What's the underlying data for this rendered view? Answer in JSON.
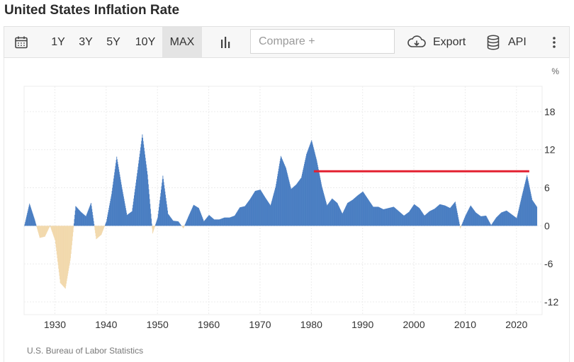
{
  "page": {
    "title": "United States Inflation Rate"
  },
  "toolbar": {
    "ranges": [
      "1Y",
      "3Y",
      "5Y",
      "10Y",
      "MAX"
    ],
    "selected_range": "MAX",
    "compare_placeholder": "Compare +",
    "export_label": "Export",
    "api_label": "API"
  },
  "colors": {
    "positive": "#4a7ec2",
    "negative": "#f2d9ad",
    "highlight_line": "#e32030",
    "grid": "#ececec"
  },
  "source": "U.S. Bureau of Labor Statistics",
  "chart_data": {
    "type": "bar",
    "ylabel": "%",
    "ylim": [
      -14,
      22
    ],
    "yticks": [
      18,
      12,
      6,
      0,
      -6,
      -12
    ],
    "xlim": [
      1924,
      2025
    ],
    "xticks": [
      1930,
      1940,
      1950,
      1960,
      1970,
      1980,
      1990,
      2000,
      2010,
      2020
    ],
    "grid": true,
    "series": [
      {
        "values_by_year": [
          [
            1924,
            0.0
          ],
          [
            1925,
            3.5
          ],
          [
            1926,
            1.0
          ],
          [
            1927,
            -1.9
          ],
          [
            1928,
            -1.7
          ],
          [
            1929,
            0.0
          ],
          [
            1930,
            -2.3
          ],
          [
            1931,
            -9.0
          ],
          [
            1932,
            -9.9
          ],
          [
            1933,
            -5.1
          ],
          [
            1934,
            3.1
          ],
          [
            1935,
            2.2
          ],
          [
            1936,
            1.5
          ],
          [
            1937,
            3.6
          ],
          [
            1938,
            -2.1
          ],
          [
            1939,
            -1.4
          ],
          [
            1940,
            0.7
          ],
          [
            1941,
            5.0
          ],
          [
            1942,
            10.9
          ],
          [
            1943,
            6.1
          ],
          [
            1944,
            1.7
          ],
          [
            1945,
            2.3
          ],
          [
            1946,
            8.3
          ],
          [
            1947,
            14.4
          ],
          [
            1948,
            8.1
          ],
          [
            1949,
            -1.2
          ],
          [
            1950,
            1.3
          ],
          [
            1951,
            7.9
          ],
          [
            1952,
            1.9
          ],
          [
            1953,
            0.8
          ],
          [
            1954,
            0.7
          ],
          [
            1955,
            -0.4
          ],
          [
            1956,
            1.5
          ],
          [
            1957,
            3.3
          ],
          [
            1958,
            2.8
          ],
          [
            1959,
            0.7
          ],
          [
            1960,
            1.7
          ],
          [
            1961,
            1.0
          ],
          [
            1962,
            1.0
          ],
          [
            1963,
            1.3
          ],
          [
            1964,
            1.3
          ],
          [
            1965,
            1.6
          ],
          [
            1966,
            2.9
          ],
          [
            1967,
            3.1
          ],
          [
            1968,
            4.2
          ],
          [
            1969,
            5.5
          ],
          [
            1970,
            5.7
          ],
          [
            1971,
            4.4
          ],
          [
            1972,
            3.2
          ],
          [
            1973,
            6.2
          ],
          [
            1974,
            11.0
          ],
          [
            1975,
            9.1
          ],
          [
            1976,
            5.8
          ],
          [
            1977,
            6.5
          ],
          [
            1978,
            7.6
          ],
          [
            1979,
            11.3
          ],
          [
            1980,
            13.5
          ],
          [
            1981,
            10.3
          ],
          [
            1982,
            6.2
          ],
          [
            1983,
            3.2
          ],
          [
            1984,
            4.3
          ],
          [
            1985,
            3.6
          ],
          [
            1986,
            1.9
          ],
          [
            1987,
            3.6
          ],
          [
            1988,
            4.1
          ],
          [
            1989,
            4.8
          ],
          [
            1990,
            5.4
          ],
          [
            1991,
            4.2
          ],
          [
            1992,
            3.0
          ],
          [
            1993,
            3.0
          ],
          [
            1994,
            2.6
          ],
          [
            1995,
            2.8
          ],
          [
            1996,
            3.0
          ],
          [
            1997,
            2.3
          ],
          [
            1998,
            1.6
          ],
          [
            1999,
            2.2
          ],
          [
            2000,
            3.4
          ],
          [
            2001,
            2.8
          ],
          [
            2002,
            1.6
          ],
          [
            2003,
            2.3
          ],
          [
            2004,
            2.7
          ],
          [
            2005,
            3.4
          ],
          [
            2006,
            3.2
          ],
          [
            2007,
            2.8
          ],
          [
            2008,
            3.8
          ],
          [
            2009,
            -0.4
          ],
          [
            2010,
            1.6
          ],
          [
            2011,
            3.2
          ],
          [
            2012,
            2.1
          ],
          [
            2013,
            1.5
          ],
          [
            2014,
            1.6
          ],
          [
            2015,
            0.1
          ],
          [
            2016,
            1.3
          ],
          [
            2017,
            2.1
          ],
          [
            2018,
            2.4
          ],
          [
            2019,
            1.8
          ],
          [
            2020,
            1.2
          ],
          [
            2021,
            4.7
          ],
          [
            2022,
            8.0
          ],
          [
            2023,
            4.1
          ],
          [
            2024,
            2.9
          ]
        ]
      }
    ],
    "annotations": [
      {
        "type": "horizontal_line",
        "x_start": 1980.5,
        "x_end": 2022.5,
        "y": 8.6
      }
    ]
  }
}
